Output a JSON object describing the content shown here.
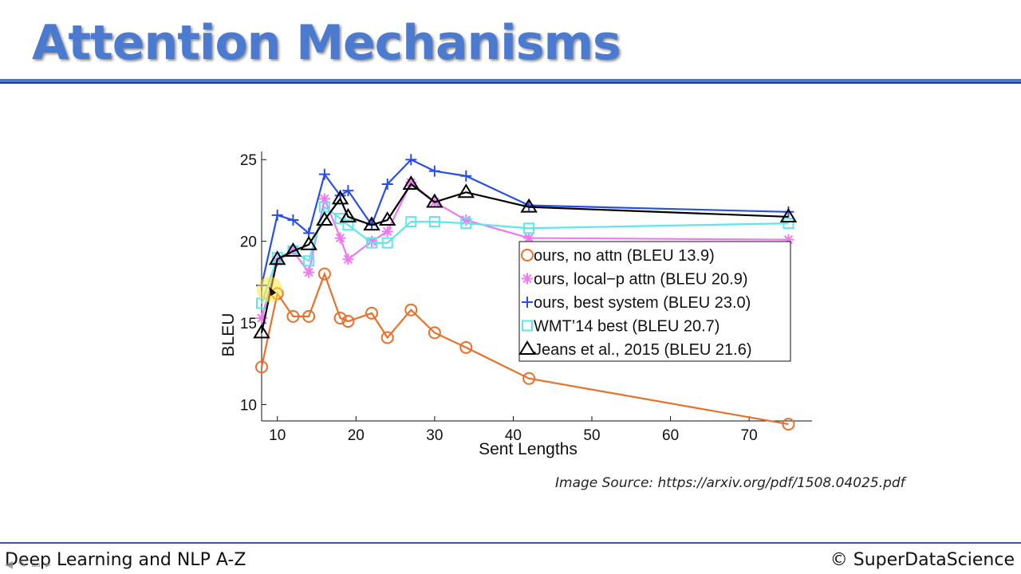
{
  "slide": {
    "title": "Attention Mechanisms",
    "source": "Image Source: https://arxiv.org/pdf/1508.04025.pdf",
    "footer_left": "Deep Learning and NLP A-Z",
    "footer_right": "© SuperDataScience"
  },
  "colors": {
    "title": "#4a7bd0",
    "rule": "#4a7bd0"
  },
  "chart_data": {
    "type": "line",
    "xlabel": "Sent Lengths",
    "ylabel": "BLEU",
    "xlim": [
      8,
      78
    ],
    "ylim": [
      9,
      25.5
    ],
    "xticks": [
      10,
      20,
      30,
      40,
      50,
      60,
      70
    ],
    "yticks": [
      10,
      15,
      20,
      25
    ],
    "legend_position": "center-right",
    "series": [
      {
        "name": "ours, no attn (BLEU 13.9)",
        "color": "#e8702a",
        "marker": "circle",
        "points": [
          [
            8,
            12.3
          ],
          [
            10,
            16.8
          ],
          [
            12,
            15.4
          ],
          [
            14,
            15.4
          ],
          [
            16,
            18.0
          ],
          [
            18,
            15.3
          ],
          [
            19,
            15.1
          ],
          [
            22,
            15.6
          ],
          [
            24,
            14.1
          ],
          [
            27,
            15.8
          ],
          [
            30,
            14.4
          ],
          [
            34,
            13.5
          ],
          [
            42,
            11.6
          ],
          [
            75,
            8.8
          ]
        ]
      },
      {
        "name": "ours, local−p attn (BLEU 20.9)",
        "color": "#f078f0",
        "marker": "asterisk",
        "points": [
          [
            8,
            15.3
          ],
          [
            10,
            18.8
          ],
          [
            12,
            19.4
          ],
          [
            14,
            18.1
          ],
          [
            16,
            22.6
          ],
          [
            18,
            20.2
          ],
          [
            19,
            18.9
          ],
          [
            22,
            20.0
          ],
          [
            24,
            20.6
          ],
          [
            27,
            23.6
          ],
          [
            30,
            22.4
          ],
          [
            34,
            21.3
          ],
          [
            42,
            20.2
          ],
          [
            75,
            20.1
          ]
        ]
      },
      {
        "name": "ours, best system (BLEU 23.0)",
        "color": "#2a4fe0",
        "marker": "plus",
        "points": [
          [
            8,
            17.3
          ],
          [
            10,
            21.6
          ],
          [
            12,
            21.3
          ],
          [
            14,
            20.5
          ],
          [
            16,
            24.1
          ],
          [
            18,
            22.8
          ],
          [
            19,
            23.1
          ],
          [
            22,
            21.0
          ],
          [
            24,
            23.5
          ],
          [
            27,
            25.0
          ],
          [
            30,
            24.3
          ],
          [
            34,
            24.0
          ],
          [
            42,
            22.2
          ],
          [
            75,
            21.8
          ]
        ]
      },
      {
        "name": "WMT’14 best (BLEU 20.7)",
        "color": "#5ee6ee",
        "marker": "square",
        "points": [
          [
            8,
            16.2
          ],
          [
            10,
            19.0
          ],
          [
            12,
            19.4
          ],
          [
            14,
            18.8
          ],
          [
            16,
            22.1
          ],
          [
            18,
            21.4
          ],
          [
            19,
            21.0
          ],
          [
            22,
            19.9
          ],
          [
            24,
            19.9
          ],
          [
            27,
            21.2
          ],
          [
            30,
            21.2
          ],
          [
            34,
            21.1
          ],
          [
            42,
            20.8
          ],
          [
            75,
            21.1
          ]
        ]
      },
      {
        "name": "Jeans et al., 2015 (BLEU 21.6)",
        "color": "#000000",
        "marker": "triangle",
        "points": [
          [
            8,
            14.4
          ],
          [
            10,
            18.9
          ],
          [
            12,
            19.4
          ],
          [
            14,
            19.8
          ],
          [
            16,
            21.3
          ],
          [
            18,
            22.6
          ],
          [
            19,
            21.5
          ],
          [
            22,
            21.0
          ],
          [
            24,
            21.3
          ],
          [
            27,
            23.5
          ],
          [
            30,
            22.4
          ],
          [
            34,
            23.0
          ],
          [
            42,
            22.1
          ],
          [
            75,
            21.5
          ]
        ]
      }
    ]
  }
}
